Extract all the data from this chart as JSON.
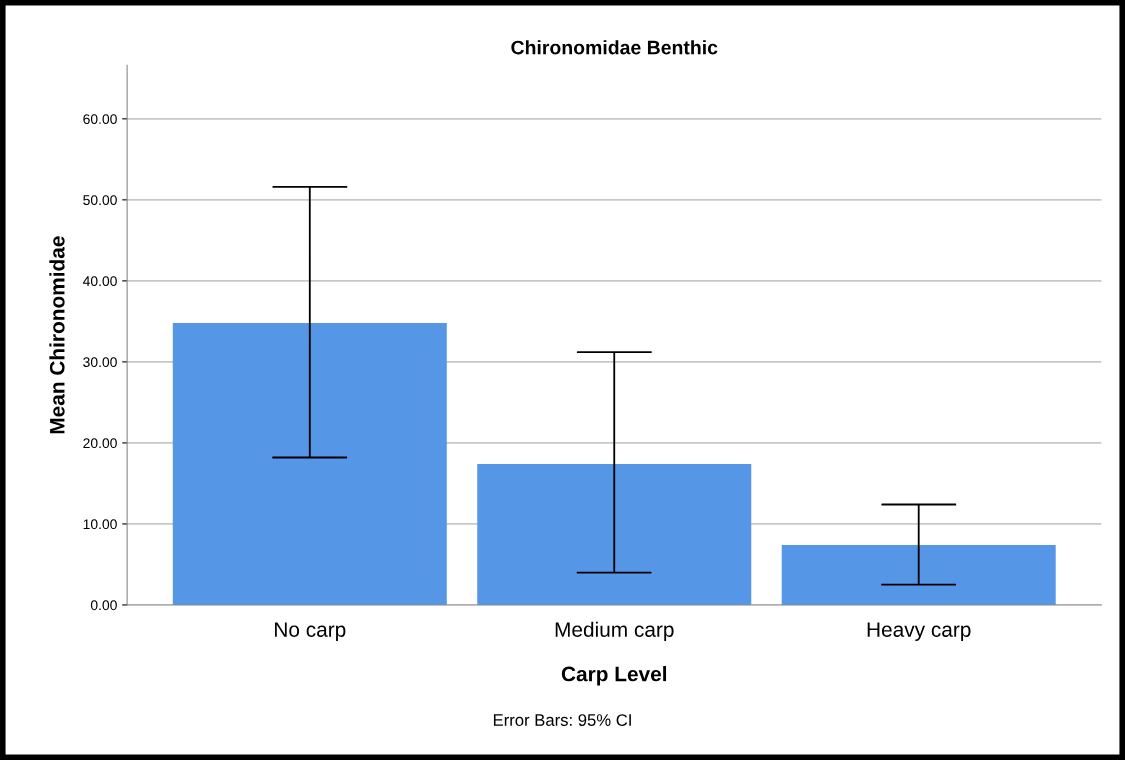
{
  "chart_data": {
    "type": "bar",
    "title": "Chironomidae Benthic",
    "xlabel": "Carp Level",
    "ylabel": "Mean Chironomidae",
    "categories": [
      "No carp",
      "Medium carp",
      "Heavy carp"
    ],
    "values": [
      34.8,
      17.4,
      7.4
    ],
    "errors": [
      [
        18.2,
        51.6
      ],
      [
        4.0,
        31.2
      ],
      [
        2.5,
        12.4
      ]
    ],
    "color": "#5596e6",
    "ylim": [
      0,
      66.6
    ],
    "yticks": [
      {
        "value": 0,
        "label": "0.00"
      },
      {
        "value": 10,
        "label": "10.00"
      },
      {
        "value": 20,
        "label": "20.00"
      },
      {
        "value": 30,
        "label": "30.00"
      },
      {
        "value": 40,
        "label": "40.00"
      },
      {
        "value": 50,
        "label": "50.00"
      },
      {
        "value": 60,
        "label": "60.00"
      }
    ],
    "grid": "y",
    "annotations": [
      "Error Bars: 95% CI"
    ]
  }
}
